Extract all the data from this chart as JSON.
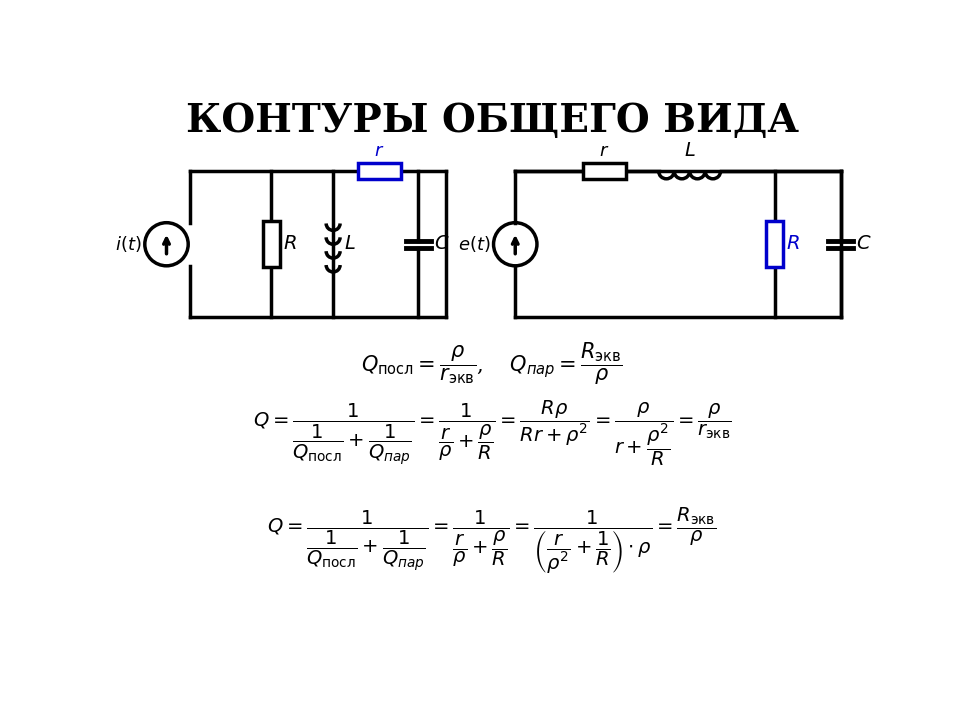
{
  "title": "КОНТУРЫ ОБЩЕГО ВИДА",
  "title_fontsize": 28,
  "bg_color": "#ffffff",
  "black": "#000000",
  "blue": "#0000cc",
  "lw": 2.5
}
